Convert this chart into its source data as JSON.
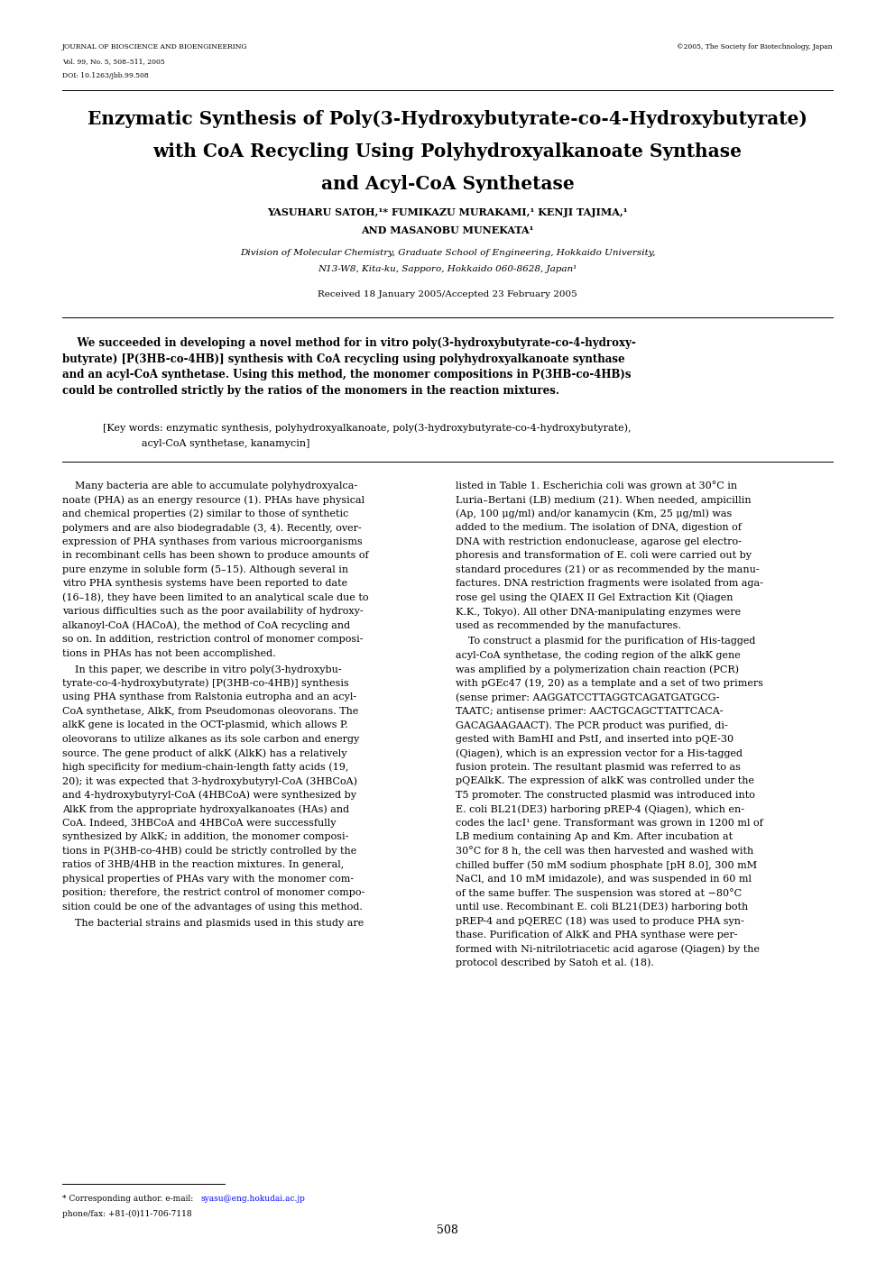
{
  "page_width": 9.92,
  "page_height": 14.03,
  "bg_color": "#ffffff",
  "journal_name": "JOURNAL OF BIOSCIENCE AND BIOENGINEERING",
  "journal_vol": "Vol. 99, No. 5, 508–511, 2005",
  "journal_doi": "DOI: 10.1263/jbb.99.508",
  "journal_copy": "©2005, The Society for Biotechnology, Japan",
  "title1": "Enzymatic Synthesis of Poly(3-Hydroxybutyrate-co-4-Hydroxybutyrate)",
  "title2": "with CoA Recycling Using Polyhydroxyalkanoate Synthase",
  "title3": "and Acyl-CoA Synthetase",
  "author1": "YASUHARU SATOH,¹* FUMIKAZU MURAKAMI,¹ KENJI TAJIMA,¹",
  "author2": "AND MASANOBU MUNEKATA¹",
  "affil1": "Division of Molecular Chemistry, Graduate School of Engineering, Hokkaido University,",
  "affil2": "N13-W8, Kita-ku, Sapporo, Hokkaido 060-8628, Japan¹",
  "received": "Received 18 January 2005/Accepted 23 February 2005",
  "abs_line1": "    We succeeded in developing a novel method for in vitro poly(3-hydroxybutyrate-co-4-hydroxy-",
  "abs_line2": "butyrate) [P(3HB-co-4HB)] synthesis with CoA recycling using polyhydroxyalkanoate synthase",
  "abs_line3": "and an acyl-CoA synthetase. Using this method, the monomer compositions in P(3HB-co-4HB)s",
  "abs_line4": "could be controlled strictly by the ratios of the monomers in the reaction mixtures.",
  "kw_line1": "[Key words: enzymatic synthesis, polyhydroxyalkanoate, poly(3-hydroxybutyrate-co-4-hydroxybutyrate),",
  "kw_line2": "acyl-CoA synthetase, kanamycin]",
  "col1_para1_lines": [
    "    Many bacteria are able to accumulate polyhydroxyalca-",
    "noate (PHA) as an energy resource (1). PHAs have physical",
    "and chemical properties (2) similar to those of synthetic",
    "polymers and are also biodegradable (3, 4). Recently, over-",
    "expression of PHA synthases from various microorganisms",
    "in recombinant cells has been shown to produce amounts of",
    "pure enzyme in soluble form (5–15). Although several in",
    "vitro PHA synthesis systems have been reported to date",
    "(16–18), they have been limited to an analytical scale due to",
    "various difficulties such as the poor availability of hydroxy-",
    "alkanoyl-CoA (HACoA), the method of CoA recycling and",
    "so on. In addition, restriction control of monomer composi-",
    "tions in PHAs has not been accomplished."
  ],
  "col1_para2_lines": [
    "    In this paper, we describe in vitro poly(3-hydroxybu-",
    "tyrate-co-4-hydroxybutyrate) [P(3HB-co-4HB)] synthesis",
    "using PHA synthase from Ralstonia eutropha and an acyl-",
    "CoA synthetase, AlkK, from Pseudomonas oleovorans. The",
    "alkK gene is located in the OCT-plasmid, which allows P.",
    "oleovorans to utilize alkanes as its sole carbon and energy",
    "source. The gene product of alkK (AlkK) has a relatively",
    "high specificity for medium-chain-length fatty acids (19,",
    "20); it was expected that 3-hydroxybutyryl-CoA (3HBCoA)",
    "and 4-hydroxybutyryl-CoA (4HBCoA) were synthesized by",
    "AlkK from the appropriate hydroxyalkanoates (HAs) and",
    "CoA. Indeed, 3HBCoA and 4HBCoA were successfully",
    "synthesized by AlkK; in addition, the monomer composi-",
    "tions in P(3HB-co-4HB) could be strictly controlled by the",
    "ratios of 3HB/4HB in the reaction mixtures. In general,",
    "physical properties of PHAs vary with the monomer com-",
    "position; therefore, the restrict control of monomer compo-",
    "sition could be one of the advantages of using this method."
  ],
  "col1_para3_lines": [
    "    The bacterial strains and plasmids used in this study are"
  ],
  "col2_para1_lines": [
    "listed in Table 1. Escherichia coli was grown at 30°C in",
    "Luria–Bertani (LB) medium (21). When needed, ampicillin",
    "(Ap, 100 μg/ml) and/or kanamycin (Km, 25 μg/ml) was",
    "added to the medium. The isolation of DNA, digestion of",
    "DNA with restriction endonuclease, agarose gel electro-",
    "phoresis and transformation of E. coli were carried out by",
    "standard procedures (21) or as recommended by the manu-",
    "factures. DNA restriction fragments were isolated from aga-",
    "rose gel using the QIAEX II Gel Extraction Kit (Qiagen",
    "K.K., Tokyo). All other DNA-manipulating enzymes were",
    "used as recommended by the manufactures."
  ],
  "col2_para2_lines": [
    "    To construct a plasmid for the purification of His-tagged",
    "acyl-CoA synthetase, the coding region of the alkK gene",
    "was amplified by a polymerization chain reaction (PCR)",
    "with pGEc47 (19, 20) as a template and a set of two primers",
    "(sense primer: AAGGATCCTTAGGTCAGATGATGCG-",
    "TAATC; antisense primer: AACTGCAGCTTATTCACA-",
    "GACAGAAGAACT). The PCR product was purified, di-",
    "gested with BamHI and PstI, and inserted into pQE-30",
    "(Qiagen), which is an expression vector for a His-tagged",
    "fusion protein. The resultant plasmid was referred to as",
    "pQEAlkK. The expression of alkK was controlled under the",
    "T5 promoter. The constructed plasmid was introduced into",
    "E. coli BL21(DE3) harboring pREP-4 (Qiagen), which en-",
    "codes the lacI¹ gene. Transformant was grown in 1200 ml of",
    "LB medium containing Ap and Km. After incubation at",
    "30°C for 8 h, the cell was then harvested and washed with",
    "chilled buffer (50 mM sodium phosphate [pH 8.0], 300 mM",
    "NaCl, and 10 mM imidazole), and was suspended in 60 ml",
    "of the same buffer. The suspension was stored at −80°C",
    "until use. Recombinant E. coli BL21(DE3) harboring both",
    "pREP-4 and pQEREC (18) was used to produce PHA syn-",
    "thase. Purification of AlkK and PHA synthase were per-",
    "formed with Ni-nitrilotriacetic acid agarose (Qiagen) by the",
    "protocol described by Satoh et al. (18)."
  ],
  "page_num": "508",
  "fn_text1": "* Corresponding author. e-mail: ",
  "fn_email": "syasu@eng.hokudai.ac.jp",
  "fn_text2": "phone/fax: +81-(0)11-706-7118"
}
